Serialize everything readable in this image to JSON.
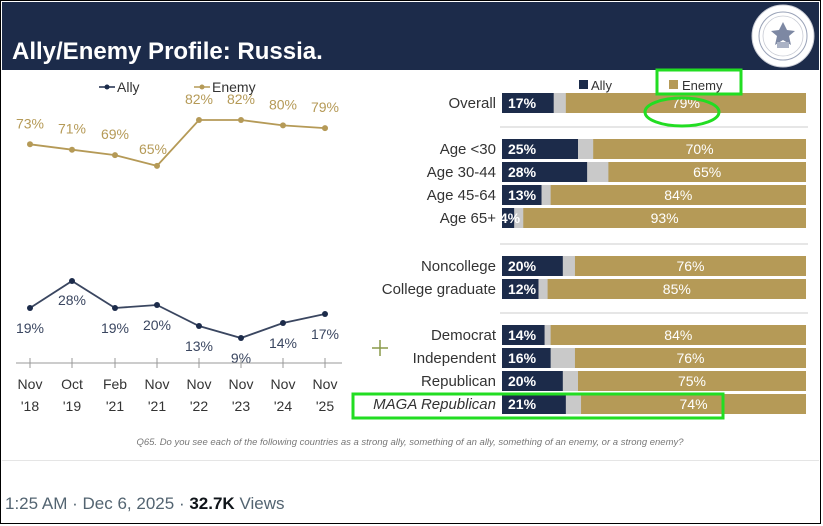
{
  "title": "Ally/Enemy Profile: Russia.",
  "footnote": "Q65. Do you see each of the following countries as a strong ally, something of an ally, something of an enemy, or a strong enemy?",
  "tweet_footer": {
    "time": "1:25 AM",
    "sep1": "·",
    "date": "Dec 6, 2025",
    "sep2": "·",
    "views": "32.7K",
    "views_label": "Views"
  },
  "colors": {
    "header": "#1c2b4a",
    "ally": "#1c2b4a",
    "enemy": "#b59a57",
    "neutral": "#c9c9c9",
    "highlight": "#22dd22"
  },
  "chart_data": [
    {
      "type": "line",
      "legend": [
        "Ally",
        "Enemy"
      ],
      "categories": [
        "Nov '18",
        "Oct '19",
        "Feb '21",
        "Nov '21",
        "Nov '22",
        "Nov '23",
        "Nov '24",
        "Nov '25"
      ],
      "x_month": [
        "Nov",
        "Oct",
        "Feb",
        "Nov",
        "Nov",
        "Nov",
        "Nov",
        "Nov"
      ],
      "x_year": [
        "'18",
        "'19",
        "'21",
        "'21",
        "'22",
        "'23",
        "'24",
        "'25"
      ],
      "series": [
        {
          "name": "Enemy",
          "values": [
            73,
            71,
            69,
            65,
            82,
            82,
            80,
            79
          ]
        },
        {
          "name": "Ally",
          "values": [
            19,
            28,
            19,
            20,
            13,
            9,
            14,
            17
          ]
        }
      ],
      "ylim": [
        0,
        100
      ]
    },
    {
      "type": "bar",
      "stacked": true,
      "legend": [
        "Ally",
        "Enemy"
      ],
      "groups": [
        {
          "rows": [
            {
              "label": "Overall",
              "ally": 17,
              "enemy": 79
            }
          ]
        },
        {
          "rows": [
            {
              "label": "Age <30",
              "ally": 25,
              "enemy": 70
            },
            {
              "label": "Age 30-44",
              "ally": 28,
              "enemy": 65
            },
            {
              "label": "Age 45-64",
              "ally": 13,
              "enemy": 84
            },
            {
              "label": "Age 65+",
              "ally": 4,
              "enemy": 93
            }
          ]
        },
        {
          "rows": [
            {
              "label": "Noncollege",
              "ally": 20,
              "enemy": 76
            },
            {
              "label": "College graduate",
              "ally": 12,
              "enemy": 85
            }
          ]
        },
        {
          "rows": [
            {
              "label": "Democrat",
              "ally": 14,
              "enemy": 84
            },
            {
              "label": "Independent",
              "ally": 16,
              "enemy": 76
            },
            {
              "label": "Republican",
              "ally": 20,
              "enemy": 75
            },
            {
              "label": "MAGA Republican",
              "ally": 21,
              "enemy": 74,
              "italic": true
            }
          ]
        }
      ]
    }
  ]
}
